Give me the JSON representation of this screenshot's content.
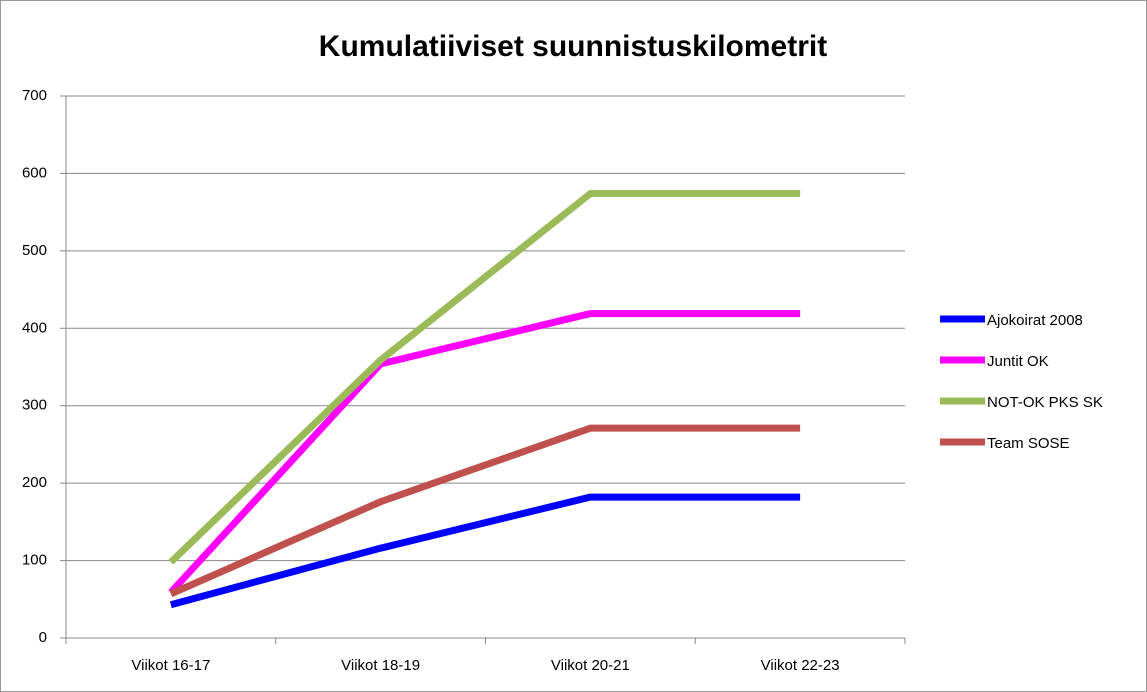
{
  "chart_data": {
    "type": "line",
    "title": "Kumulatiiviset suunnistuskilometrit",
    "categories": [
      "Viikot 16-17",
      "Viikot 18-19",
      "Viikot 20-21",
      "Viikot 22-23"
    ],
    "series": [
      {
        "name": "Ajokoirat 2008",
        "color": "#0000ff",
        "values": [
          43,
          116,
          182,
          182
        ]
      },
      {
        "name": "Juntit OK",
        "color": "#ff00ff",
        "values": [
          59,
          354,
          419,
          419
        ]
      },
      {
        "name": "NOT-OK PKS SK",
        "color": "#9bbb59",
        "values": [
          98,
          359,
          574,
          574
        ]
      },
      {
        "name": "Team SOSE",
        "color": "#c0504d",
        "values": [
          57,
          176,
          271,
          271
        ]
      }
    ],
    "ylim": [
      0,
      700
    ],
    "yticks": [
      0,
      100,
      200,
      300,
      400,
      500,
      600,
      700
    ],
    "grid": true,
    "legend": "right"
  }
}
